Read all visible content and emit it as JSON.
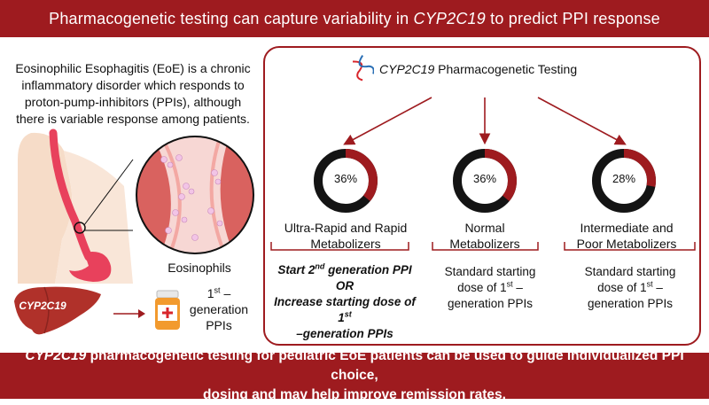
{
  "header": {
    "title_pre": "Pharmacogenetic testing can capture variability in ",
    "title_gene": "CYP2C19",
    "title_post": " to predict PPI response"
  },
  "intro": {
    "text": "Eosinophilic Esophagitis (EoE) is a chronic inflammatory disorder which responds to proton-pump-inhibitors (PPIs), although there is variable response among patients."
  },
  "illustration": {
    "eosinophils_label": "Eosinophils",
    "liver_label": "CYP2C19",
    "ppi_sup": "st",
    "ppi_pre": "1",
    "ppi_post": " – generation PPIs"
  },
  "testing": {
    "gene": "CYP2C19",
    "title_post": " Pharmacogenetic Testing"
  },
  "groups": [
    {
      "pct_label": "36%",
      "value": 36,
      "name_line1": "Ultra-Rapid and Rapid",
      "name_line2": "Metabolizers"
    },
    {
      "pct_label": "36%",
      "value": 36,
      "name_line1": "Normal",
      "name_line2": "Metabolizers"
    },
    {
      "pct_label": "28%",
      "value": 28,
      "name_line1": "Intermediate and",
      "name_line2": "Poor Metabolizers"
    }
  ],
  "recommendations": {
    "rapid": {
      "line1_pre": "Start 2",
      "line1_sup": "nd",
      "line1_post": " generation PPI",
      "line2": "OR",
      "line3_pre": "Increase starting dose of 1",
      "line3_sup": "st",
      "line4": "–generation PPIs"
    },
    "normal": {
      "line1": "Standard starting",
      "line2_pre": "dose of 1",
      "line2_sup": "st",
      "line2_post": " –",
      "line3": "generation PPIs"
    },
    "poor": {
      "line1": "Standard starting",
      "line2_pre": "dose of 1",
      "line2_sup": "st",
      "line2_post": " –",
      "line3": "generation PPIs"
    }
  },
  "footer": {
    "gene": "CYP2C19",
    "line1_post": " pharmacogenetic testing for pediatric EoE patients can be used to guide individualized PPI choice,",
    "line2": "dosing and may help improve remission rates."
  },
  "colors": {
    "accent": "#9e1b1f",
    "ring_dark": "#141414",
    "skin": "#f6dcc8"
  },
  "icons": [
    "dna-icon",
    "liver-icon",
    "pill-bottle-icon",
    "esophagus-illustration",
    "magnifier-illustration"
  ]
}
